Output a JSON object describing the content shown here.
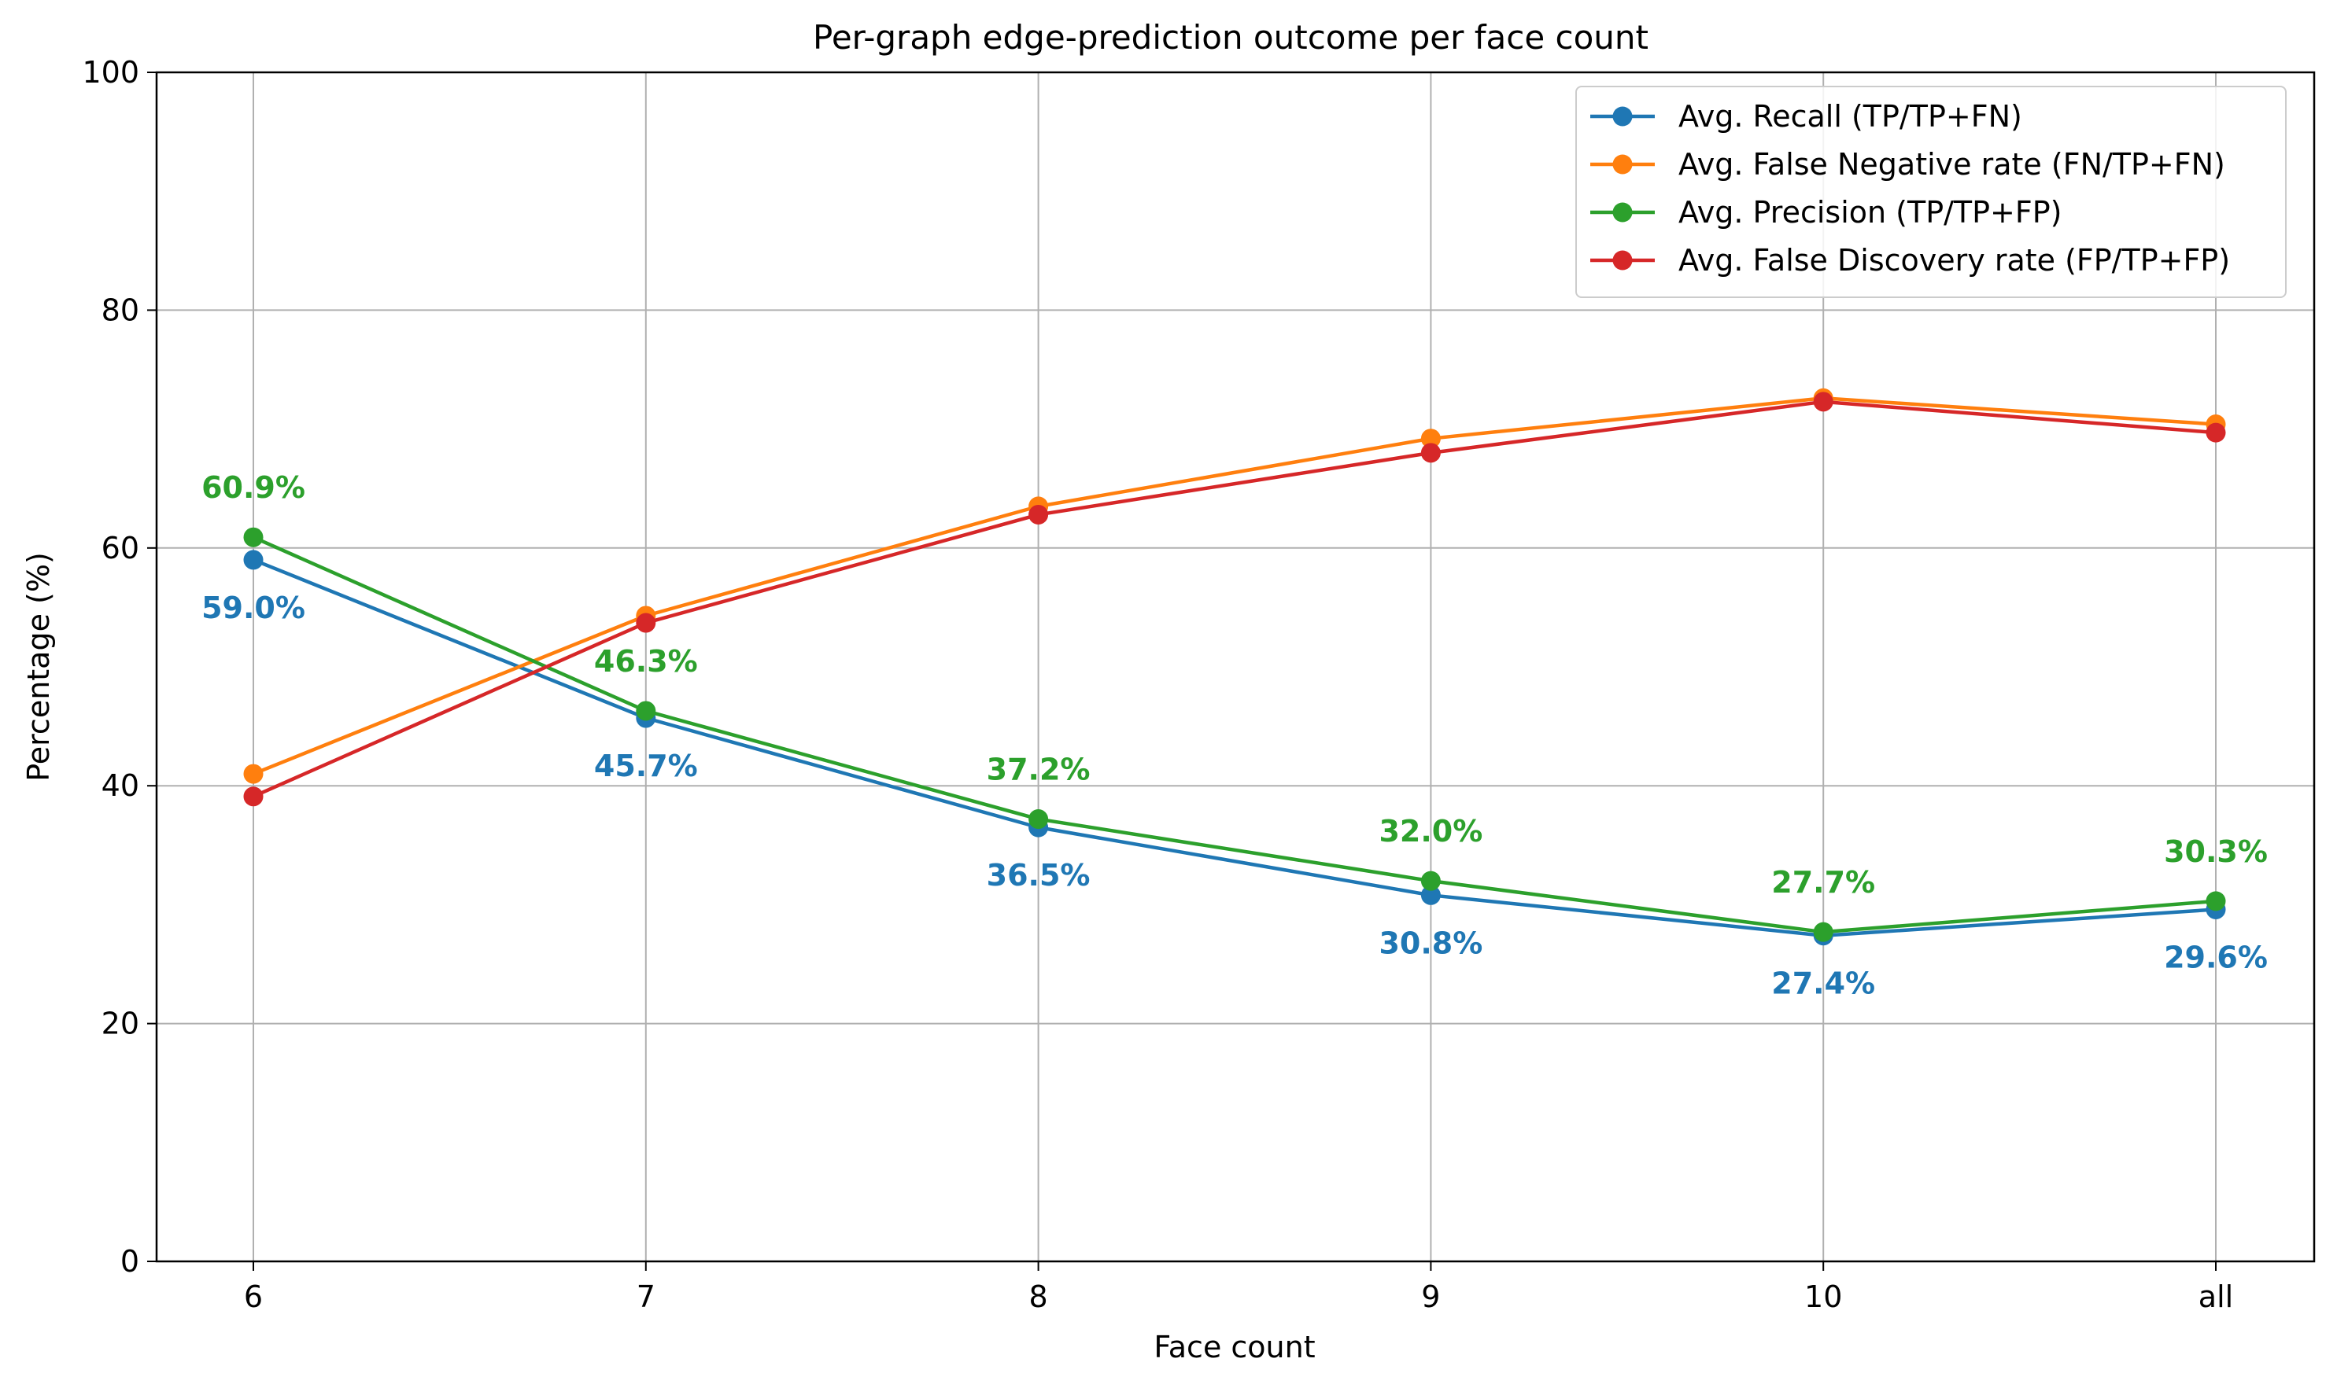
{
  "chart_data": {
    "type": "line",
    "title": "Per-graph edge-prediction outcome per face count",
    "xlabel": "Face count",
    "ylabel": "Percentage (%)",
    "categories": [
      "6",
      "7",
      "8",
      "9",
      "10",
      "all"
    ],
    "ylim": [
      0,
      100
    ],
    "yticks": [
      0,
      20,
      40,
      60,
      80,
      100
    ],
    "grid": true,
    "legend_position": "top-right",
    "series": [
      {
        "name": "Avg. Recall (TP/TP+FN)",
        "color": "#1f77b4",
        "values": [
          59.0,
          45.7,
          36.5,
          30.8,
          27.4,
          29.6
        ],
        "labels": [
          "59.0%",
          "45.7%",
          "36.5%",
          "30.8%",
          "27.4%",
          "29.6%"
        ],
        "label_placement": "below"
      },
      {
        "name": "Avg. False Negative rate (FN/TP+FN)",
        "color": "#ff7f0e",
        "values": [
          41.0,
          54.3,
          63.5,
          69.2,
          72.6,
          70.4
        ]
      },
      {
        "name": "Avg. Precision (TP/TP+FP)",
        "color": "#2ca02c",
        "values": [
          60.9,
          46.3,
          37.2,
          32.0,
          27.7,
          30.3
        ],
        "labels": [
          "60.9%",
          "46.3%",
          "37.2%",
          "32.0%",
          "27.7%",
          "30.3%"
        ],
        "label_placement": "above"
      },
      {
        "name": "Avg. False Discovery rate (FP/TP+FP)",
        "color": "#d62728",
        "values": [
          39.1,
          53.7,
          62.8,
          68.0,
          72.3,
          69.7
        ]
      }
    ]
  }
}
